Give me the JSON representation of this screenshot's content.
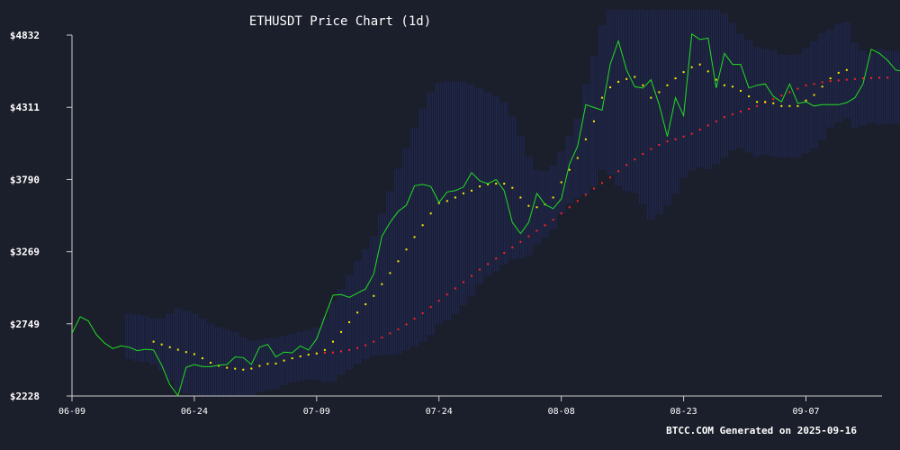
{
  "page": {
    "background": "#1b1e2b",
    "footer": "BTCC.COM Generated on 2025-09-16"
  },
  "chart_data": {
    "type": "line",
    "title": "ETHUSDT Price Chart (1d)",
    "xlabel": "",
    "ylabel": "",
    "x_start": "2025-06-09",
    "x_end": "2025-09-15",
    "xticks": [
      {
        "label": "06-09",
        "date": "2025-06-09"
      },
      {
        "label": "06-24",
        "date": "2025-06-24"
      },
      {
        "label": "07-09",
        "date": "2025-07-09"
      },
      {
        "label": "07-24",
        "date": "2025-07-24"
      },
      {
        "label": "08-08",
        "date": "2025-08-08"
      },
      {
        "label": "08-23",
        "date": "2025-08-23"
      },
      {
        "label": "09-07",
        "date": "2025-09-07"
      }
    ],
    "yticks": [
      {
        "label": "$4832",
        "value": 4832
      },
      {
        "label": "$4311",
        "value": 4311
      },
      {
        "label": "$3790",
        "value": 3790
      },
      {
        "label": "$3269",
        "value": 3269
      },
      {
        "label": "$2749",
        "value": 2749
      },
      {
        "label": "$2228",
        "value": 2228
      }
    ],
    "ylim": [
      2228,
      4832
    ],
    "grid": false,
    "colors": {
      "price": "#22dd22",
      "ma20": "#ffee00",
      "ma50": "#ff2222",
      "band": "#2a3a9a",
      "axis": "#cccccc",
      "text": "#ffffff"
    },
    "series": [
      {
        "key": "price",
        "style": "line",
        "start_date": "2025-06-09",
        "values": [
          2680,
          2800,
          2770,
          2670,
          2610,
          2570,
          2590,
          2580,
          2555,
          2565,
          2560,
          2450,
          2310,
          2230,
          2435,
          2455,
          2440,
          2440,
          2450,
          2455,
          2510,
          2505,
          2455,
          2580,
          2600,
          2510,
          2545,
          2540,
          2590,
          2560,
          2640,
          2800,
          2955,
          2960,
          2940,
          2970,
          3000,
          3110,
          3380,
          3480,
          3560,
          3605,
          3745,
          3755,
          3740,
          3625,
          3700,
          3710,
          3735,
          3840,
          3780,
          3760,
          3790,
          3710,
          3480,
          3400,
          3480,
          3690,
          3610,
          3580,
          3650,
          3900,
          4030,
          4330,
          4310,
          4290,
          4620,
          4790,
          4580,
          4460,
          4450,
          4510,
          4330,
          4100,
          4380,
          4250,
          4840,
          4800,
          4810,
          4450,
          4700,
          4620,
          4620,
          4450,
          4470,
          4480,
          4390,
          4350,
          4480,
          4340,
          4350,
          4320,
          4330,
          4330,
          4330,
          4345,
          4380,
          4480,
          4730,
          4700,
          4650,
          4580,
          4570
        ]
      },
      {
        "key": "ma20",
        "style": "dots",
        "start_date": "2025-06-19",
        "values": [
          2620,
          2600,
          2580,
          2562,
          2545,
          2530,
          2500,
          2468,
          2446,
          2432,
          2425,
          2418,
          2426,
          2445,
          2460,
          2462,
          2484,
          2500,
          2514,
          2526,
          2535,
          2560,
          2620,
          2690,
          2760,
          2830,
          2890,
          2950,
          3035,
          3115,
          3200,
          3285,
          3375,
          3460,
          3545,
          3620,
          3635,
          3660,
          3690,
          3710,
          3740,
          3755,
          3760,
          3760,
          3730,
          3660,
          3600,
          3590,
          3610,
          3660,
          3770,
          3860,
          3945,
          4080,
          4210,
          4380,
          4455,
          4495,
          4515,
          4530,
          4470,
          4380,
          4420,
          4470,
          4520,
          4565,
          4600,
          4620,
          4570,
          4510,
          4470,
          4460,
          4430,
          4390,
          4350,
          4350,
          4340,
          4320,
          4320,
          4320,
          4360,
          4400,
          4460,
          4520,
          4560,
          4580
        ]
      },
      {
        "key": "ma50",
        "style": "dots",
        "start_date": "2025-07-09",
        "values": [
          2535,
          2540,
          2542,
          2550,
          2560,
          2575,
          2595,
          2620,
          2650,
          2680,
          2710,
          2745,
          2785,
          2825,
          2870,
          2915,
          2960,
          3005,
          3050,
          3095,
          3140,
          3180,
          3220,
          3260,
          3300,
          3340,
          3380,
          3420,
          3460,
          3500,
          3545,
          3590,
          3635,
          3680,
          3725,
          3765,
          3805,
          3850,
          3895,
          3935,
          3975,
          4010,
          4040,
          4065,
          4080,
          4100,
          4120,
          4150,
          4180,
          4210,
          4240,
          4260,
          4280,
          4300,
          4320,
          4345,
          4370,
          4395,
          4420,
          4445,
          4470,
          4480,
          4492,
          4500,
          4505,
          4510,
          4515,
          4520,
          4522,
          4524,
          4525
        ]
      }
    ]
  }
}
